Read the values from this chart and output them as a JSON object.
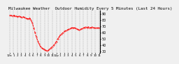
{
  "title": "Milwaukee Weather  Outdoor Humidity Every 5 Minutes (Last 24 Hours)",
  "title_fontsize": 4.2,
  "background_color": "#f0f0f0",
  "plot_bg_color": "#f0f0f0",
  "grid_color": "#aaaaaa",
  "line_color": "#ff0000",
  "line_style": "--",
  "line_width": 0.7,
  "marker": ".",
  "marker_size": 0.8,
  "ylim": [
    28,
    95
  ],
  "yticks": [
    30,
    40,
    50,
    60,
    70,
    80,
    90
  ],
  "ytick_fontsize": 3.5,
  "xtick_fontsize": 3.0,
  "x_labels": [
    "12a",
    "1",
    "2",
    "3",
    "4",
    "5",
    "6",
    "7",
    "8",
    "9",
    "10",
    "11",
    "12p",
    "1",
    "2",
    "3",
    "4",
    "5",
    "6",
    "7",
    "8",
    "9",
    "10",
    "11"
  ],
  "data_y": [
    87,
    87,
    86,
    87,
    86,
    86,
    85,
    86,
    85,
    84,
    85,
    84,
    83,
    82,
    82,
    83,
    80,
    75,
    68,
    60,
    53,
    47,
    42,
    38,
    36,
    34,
    33,
    32,
    31,
    32,
    34,
    36,
    38,
    40,
    43,
    46,
    50,
    53,
    56,
    58,
    60,
    62,
    63,
    64,
    65,
    66,
    67,
    68,
    68,
    67,
    66,
    65,
    64,
    65,
    66,
    67,
    68,
    69,
    68,
    69,
    68,
    68,
    69,
    68,
    67,
    68,
    67,
    68
  ]
}
